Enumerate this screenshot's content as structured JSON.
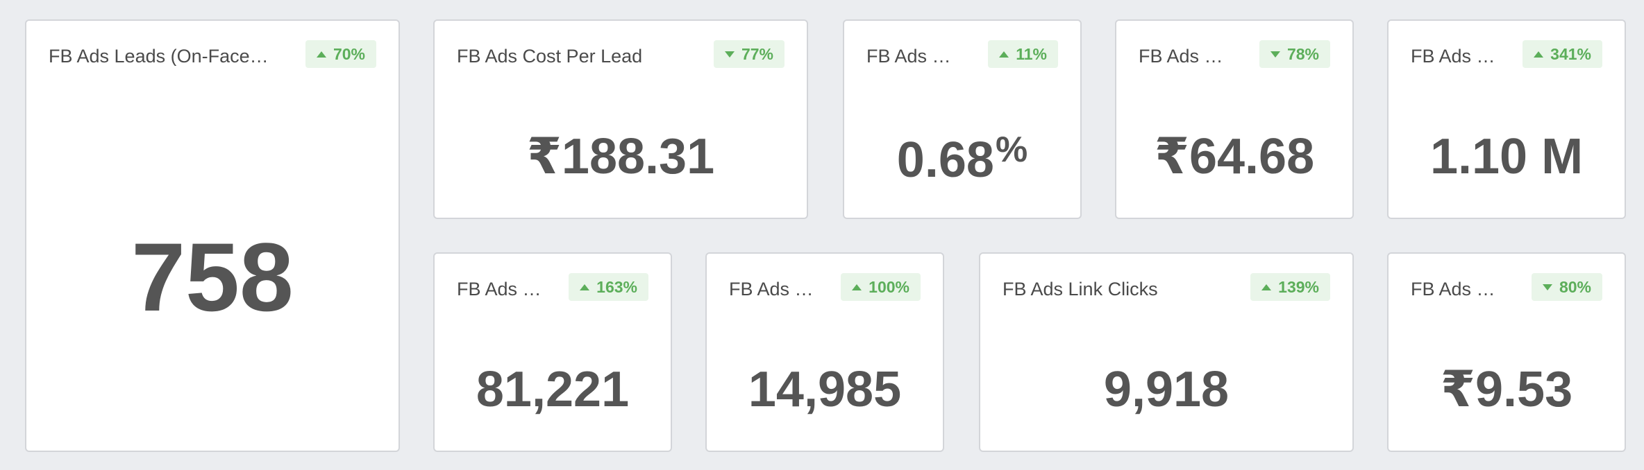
{
  "cards": [
    {
      "title": "FB Ads Leads (On-Facebook)",
      "title_display": "FB Ads Leads (On-Face…",
      "change": "70%",
      "direction": "up",
      "value": "758"
    },
    {
      "title": "FB Ads Cost Per Lead",
      "title_display": "FB Ads Cost Per Lead",
      "change": "77%",
      "direction": "down",
      "value": "₹188.31"
    },
    {
      "title": "FB Ads …",
      "title_display": "FB Ads …",
      "change": "11%",
      "direction": "up",
      "value": "0.68",
      "unit": "%"
    },
    {
      "title": "FB Ads …",
      "title_display": "FB Ads …",
      "change": "78%",
      "direction": "down",
      "value": "₹64.68"
    },
    {
      "title": "FB Ads …",
      "title_display": "FB Ads …",
      "change": "341%",
      "direction": "up",
      "value": "1.10 M"
    },
    {
      "title": "FB Ads …",
      "title_display": "FB Ads …",
      "change": "163%",
      "direction": "up",
      "value": "81,221"
    },
    {
      "title": "FB Ads …",
      "title_display": "FB Ads …",
      "change": "100%",
      "direction": "up",
      "value": "14,985"
    },
    {
      "title": "FB Ads Link Clicks",
      "title_display": "FB Ads Link Clicks",
      "change": "139%",
      "direction": "up",
      "value": "9,918"
    },
    {
      "title": "FB Ads …",
      "title_display": "FB Ads …",
      "change": "80%",
      "direction": "down",
      "value": "₹9.53"
    }
  ],
  "colors": {
    "background": "#ebedf0",
    "card": "#ffffff",
    "border": "#d3d5d9",
    "badge_bg": "#e9f5e9",
    "badge_text": "#5cae5a",
    "value_text": "#555555"
  },
  "icons": {
    "up": "caret-up-icon",
    "down": "caret-down-icon"
  }
}
